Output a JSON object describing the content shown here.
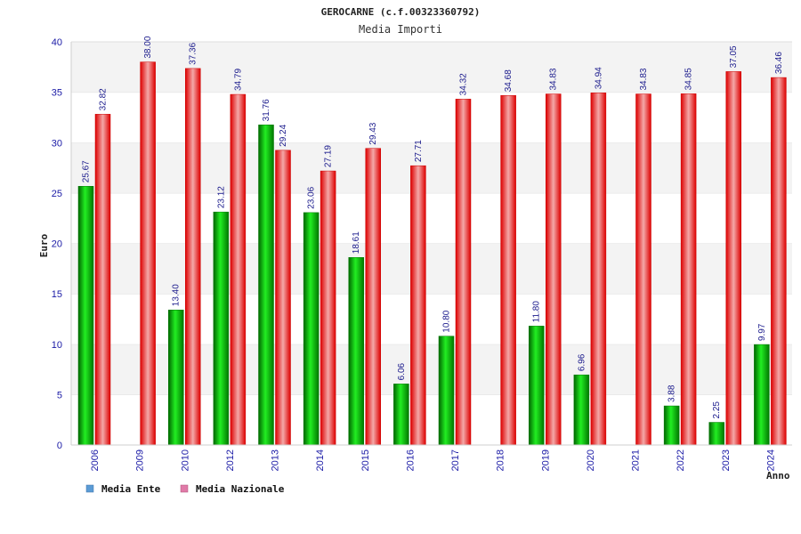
{
  "chart_data": {
    "type": "bar",
    "title": "GEROCARNE (c.f.00323360792)",
    "subtitle": "Media Importi",
    "ylabel": "Euro",
    "xlabel": "Anno",
    "ylim": [
      0,
      40
    ],
    "yticks": [
      "0",
      "5",
      "10",
      "15",
      "20",
      "25",
      "30",
      "35",
      "40"
    ],
    "grid": "horizontal-bands",
    "categories": [
      "2006",
      "2009",
      "2010",
      "2012",
      "2013",
      "2014",
      "2015",
      "2016",
      "2017",
      "2018",
      "2019",
      "2020",
      "2021",
      "2022",
      "2023",
      "2024"
    ],
    "series": [
      {
        "name": "Media Ente",
        "color": "#00bb00",
        "legend_color": "#5b9bd5",
        "values": [
          25.67,
          null,
          13.4,
          23.12,
          31.76,
          23.06,
          18.61,
          6.06,
          10.8,
          null,
          11.8,
          6.96,
          null,
          3.88,
          2.25,
          9.97
        ],
        "labels": [
          "25.67",
          "",
          "13.40",
          "23.12",
          "31.76",
          "23.06",
          "18.61",
          "6.06",
          "10.80",
          "",
          "11.80",
          "6.96",
          "",
          "3.88",
          "2.25",
          "9.97"
        ]
      },
      {
        "name": "Media Nazionale",
        "color": "#ee1111",
        "legend_color": "#e07aa8",
        "values": [
          32.82,
          38.0,
          37.36,
          34.79,
          29.24,
          27.19,
          29.43,
          27.71,
          34.32,
          34.68,
          34.83,
          34.94,
          34.83,
          34.85,
          37.05,
          36.46
        ],
        "labels": [
          "32.82",
          "38.00",
          "37.36",
          "34.79",
          "29.24",
          "27.19",
          "29.43",
          "27.71",
          "34.32",
          "34.68",
          "34.83",
          "34.94",
          "34.83",
          "34.85",
          "37.05",
          "36.46"
        ]
      }
    ]
  }
}
